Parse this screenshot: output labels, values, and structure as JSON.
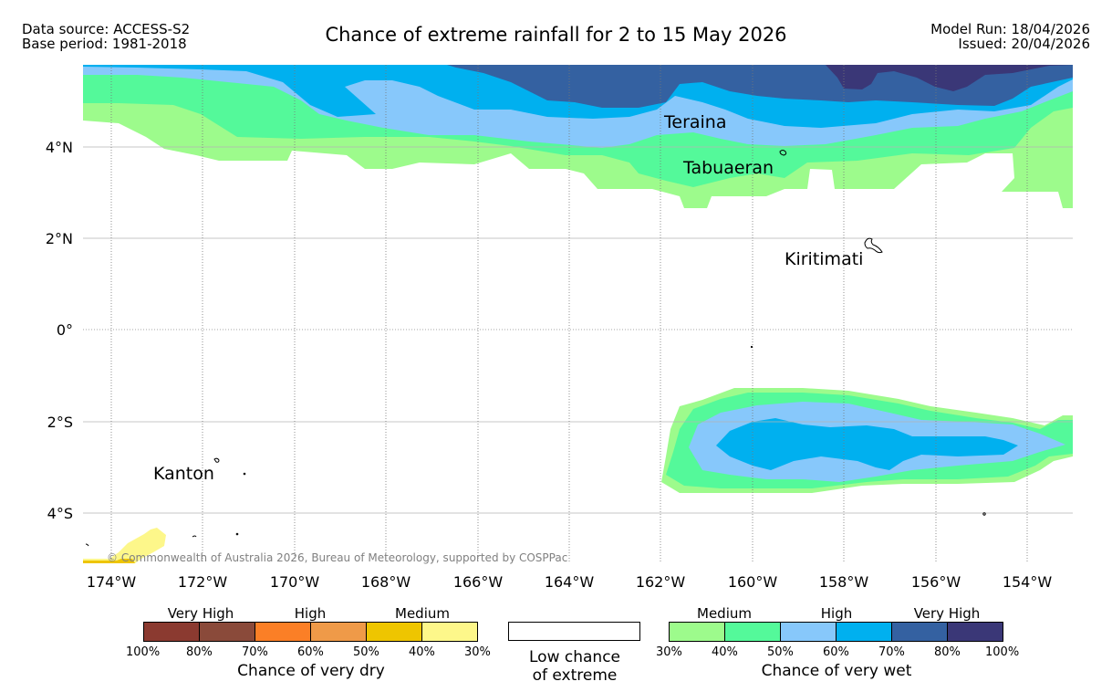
{
  "header": {
    "data_source": "Data source: ACCESS-S2",
    "base_period": "Base period: 1981-2018",
    "model_run": "Model Run: 18/04/2026",
    "issued": "Issued: 20/04/2026",
    "title": "Chance of extreme rainfall for 2 to 15 May 2026"
  },
  "map": {
    "lon_labels": [
      "174°W",
      "172°W",
      "170°W",
      "168°W",
      "166°W",
      "164°W",
      "162°W",
      "160°W",
      "158°W",
      "156°W",
      "154°W"
    ],
    "lat_labels": [
      "4°N",
      "2°N",
      "0°",
      "2°S",
      "4°S"
    ],
    "places": [
      "Teraina",
      "Tabuaeran",
      "Kiritimati",
      "Kanton"
    ],
    "copyright": "© Commonwealth of Australia 2026, Bureau of Meteorology, supported by COSPPac"
  },
  "colors": {
    "dry": [
      "#8b3a30",
      "#8a4a3a",
      "#fb7f26",
      "#ef9a48",
      "#eec500",
      "#fdf78a"
    ],
    "wet": [
      "#9dfb8c",
      "#54f99a",
      "#87c8fb",
      "#00b0ef",
      "#3461a1",
      "#3a3777"
    ]
  },
  "legend": {
    "dry": {
      "categories": [
        "Very High",
        "High",
        "Medium"
      ],
      "ticks": [
        "100%",
        "80%",
        "70%",
        "60%",
        "50%",
        "40%",
        "30%"
      ],
      "caption": "Chance of very dry"
    },
    "low": {
      "line1": "Low chance",
      "line2": "of extreme"
    },
    "wet": {
      "categories": [
        "Medium",
        "High",
        "Very High"
      ],
      "ticks": [
        "30%",
        "40%",
        "50%",
        "60%",
        "70%",
        "80%",
        "100%"
      ],
      "caption": "Chance of very wet"
    }
  }
}
